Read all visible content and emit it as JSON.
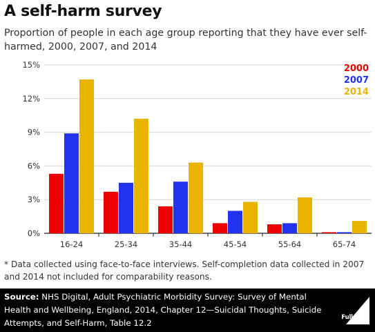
{
  "header": {
    "title": "A self-harm survey",
    "subtitle": "Proportion of people in each age group reporting that they have ever self-harmed, 2000, 2007, and 2014"
  },
  "chart_data": {
    "type": "bar",
    "categories": [
      "16-24",
      "25-34",
      "35-44",
      "45-54",
      "55-64",
      "65-74"
    ],
    "series": [
      {
        "name": "2000",
        "color": "#ee0000",
        "values": [
          5.3,
          3.7,
          2.4,
          0.9,
          0.8,
          0.1
        ]
      },
      {
        "name": "2007",
        "color": "#2233ee",
        "values": [
          8.9,
          4.5,
          4.6,
          2.0,
          0.9,
          0.1
        ]
      },
      {
        "name": "2014",
        "color": "#e8b400",
        "values": [
          13.7,
          10.2,
          6.3,
          2.8,
          3.2,
          1.1
        ]
      }
    ],
    "yticks": [
      "0%",
      "3%",
      "6%",
      "9%",
      "12%",
      "15%"
    ],
    "ylim": [
      0,
      15
    ],
    "grid": true,
    "legend": "top-right",
    "xlabel": "",
    "ylabel": ""
  },
  "footnote": "* Data collected using face-to-face interviews. Self-completion data collected in 2007 and 2014 not included for comparability reasons.",
  "source": {
    "label": "Source:",
    "text": " NHS Digital, Adult Psychiatric Morbidity Survey: Survey of Mental Health and Wellbeing, England, 2014, Chapter 12—Suicidal Thoughts, Suicide Attempts, and Self-Harm, Table 12.2"
  },
  "logo": {
    "text": "Full Fact",
    "icon": "full-fact-logo-icon"
  }
}
